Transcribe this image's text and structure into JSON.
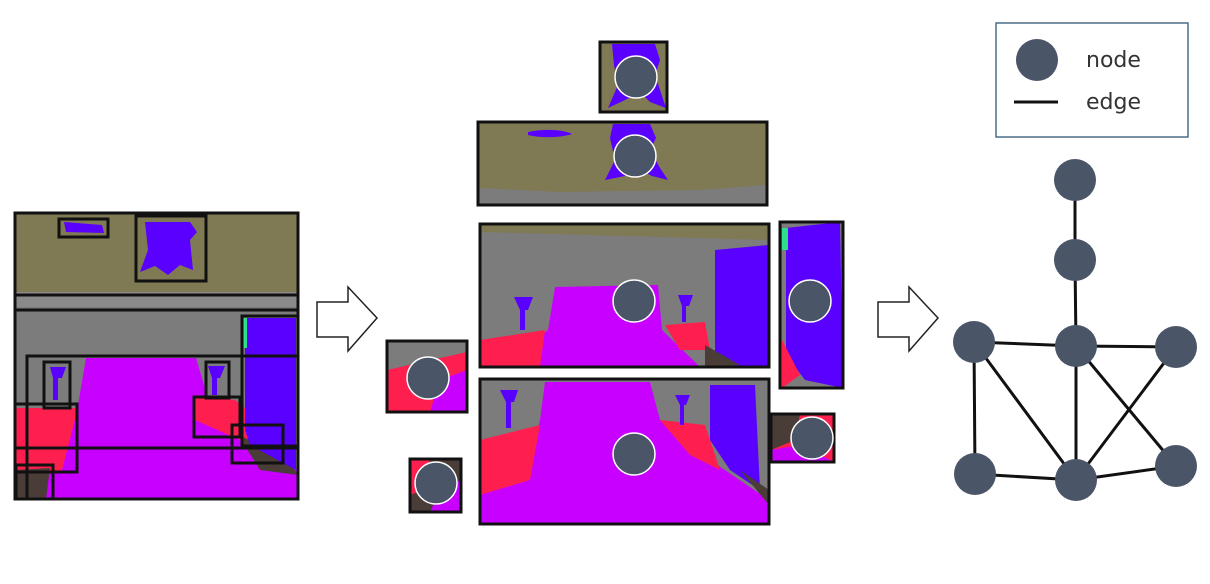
{
  "colors": {
    "wall_olive": "#7f7a54",
    "wall_gray": "#7c7c7c",
    "floor_magenta": "#c800ff",
    "furniture_red": "#ff1f4f",
    "object_blue": "#5a00ff",
    "dark_brown": "#4a3c37",
    "accent_green": "#2fe08a",
    "node_fill": "#4a5568",
    "frame_black": "#111111",
    "legend_border": "#4a6e8a"
  },
  "legend": {
    "node_label": "node",
    "edge_label": "edge"
  },
  "graph": {
    "nodes": [
      "top",
      "upper",
      "center",
      "left",
      "right",
      "bottom-left",
      "bottom-center",
      "bottom-right"
    ],
    "edges": [
      [
        "top",
        "upper"
      ],
      [
        "upper",
        "center"
      ],
      [
        "left",
        "center"
      ],
      [
        "center",
        "right"
      ],
      [
        "left",
        "bottom-left"
      ],
      [
        "left",
        "bottom-center"
      ],
      [
        "center",
        "bottom-center"
      ],
      [
        "center",
        "bottom-right"
      ],
      [
        "right",
        "bottom-center"
      ],
      [
        "bottom-left",
        "bottom-center"
      ],
      [
        "bottom-center",
        "bottom-right"
      ]
    ]
  },
  "arrows": [
    "scene-to-crops",
    "crops-to-graph"
  ]
}
